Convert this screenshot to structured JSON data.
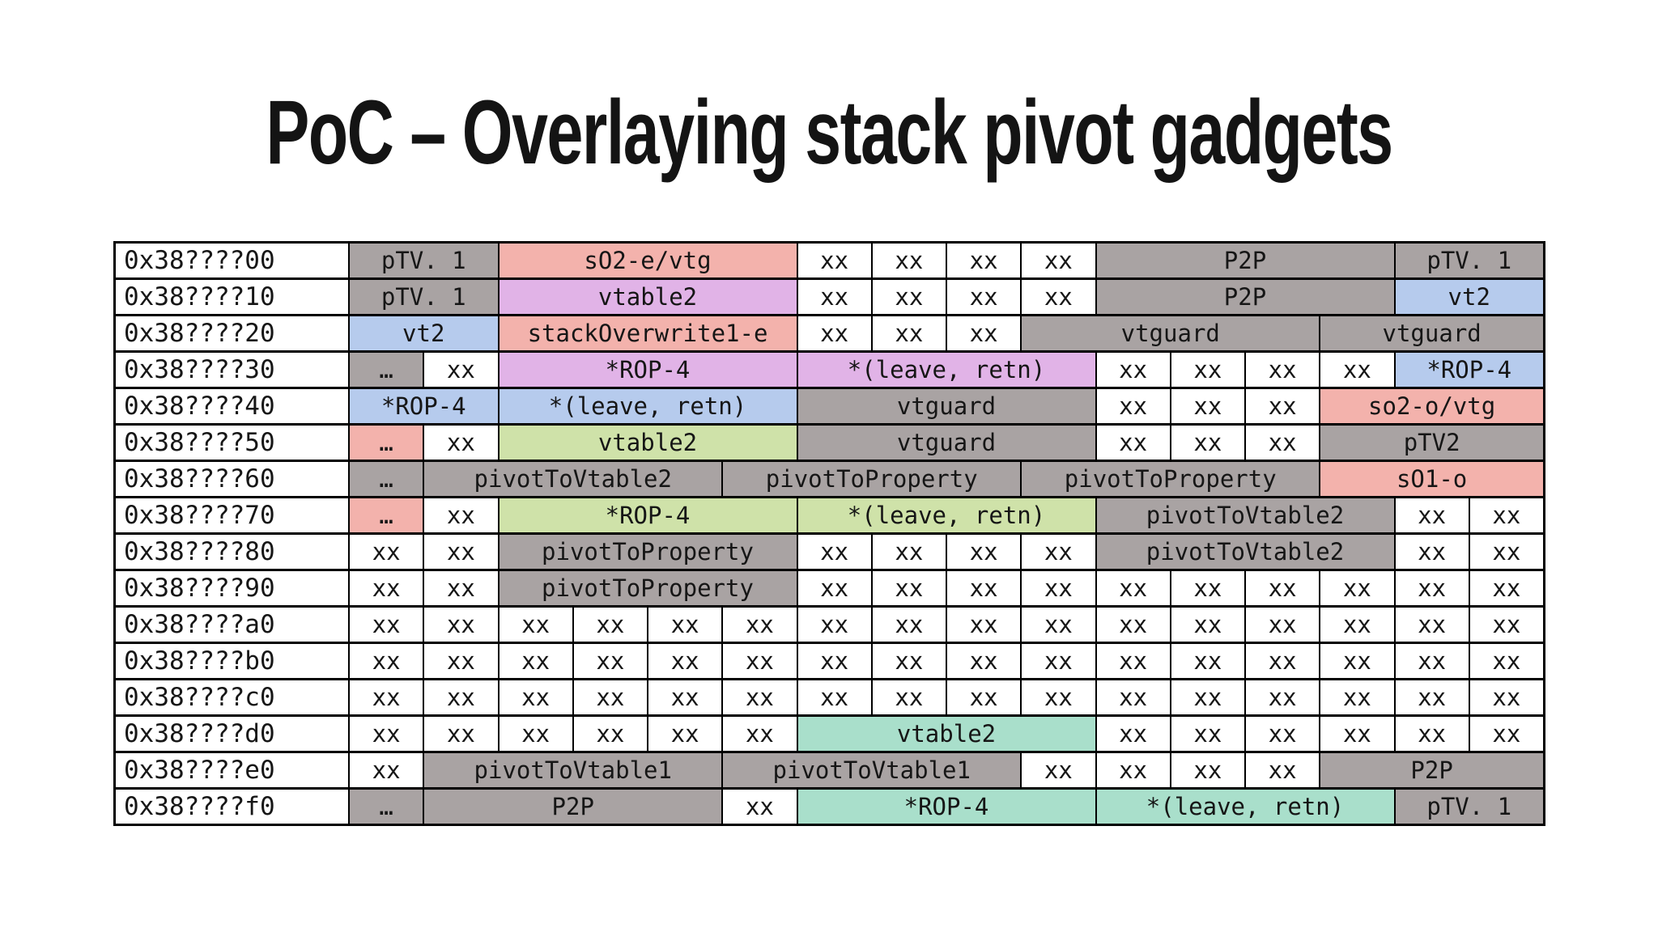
{
  "title": "PoC – Overlaying stack pivot gadgets",
  "palette": {
    "white": "#ffffff",
    "gray": "#a9a3a3",
    "salmon": "#f3b2ac",
    "purple": "#e1b3e7",
    "blue": "#b6cbed",
    "green": "#cfe2a9",
    "teal": "#a9dfcb"
  },
  "table": {
    "columns_per_row": 16,
    "rows": [
      {
        "addr": "0x38????00",
        "cells": [
          {
            "text": "pTV. 1",
            "span": 2,
            "color": "gray"
          },
          {
            "text": "sO2-e/vtg",
            "span": 4,
            "color": "salmon"
          },
          {
            "text": "xx",
            "span": 1,
            "color": "white"
          },
          {
            "text": "xx",
            "span": 1,
            "color": "white"
          },
          {
            "text": "xx",
            "span": 1,
            "color": "white"
          },
          {
            "text": "xx",
            "span": 1,
            "color": "white"
          },
          {
            "text": "P2P",
            "span": 4,
            "color": "gray"
          },
          {
            "text": "pTV. 1",
            "span": 2,
            "color": "gray"
          }
        ]
      },
      {
        "addr": "0x38????10",
        "cells": [
          {
            "text": "pTV. 1",
            "span": 2,
            "color": "gray"
          },
          {
            "text": "vtable2",
            "span": 4,
            "color": "purple"
          },
          {
            "text": "xx",
            "span": 1,
            "color": "white"
          },
          {
            "text": "xx",
            "span": 1,
            "color": "white"
          },
          {
            "text": "xx",
            "span": 1,
            "color": "white"
          },
          {
            "text": "xx",
            "span": 1,
            "color": "white"
          },
          {
            "text": "P2P",
            "span": 4,
            "color": "gray"
          },
          {
            "text": "vt2",
            "span": 2,
            "color": "blue"
          }
        ]
      },
      {
        "addr": "0x38????20",
        "cells": [
          {
            "text": "vt2",
            "span": 2,
            "color": "blue"
          },
          {
            "text": "stackOverwrite1-e",
            "span": 4,
            "color": "salmon"
          },
          {
            "text": "xx",
            "span": 1,
            "color": "white"
          },
          {
            "text": "xx",
            "span": 1,
            "color": "white"
          },
          {
            "text": "xx",
            "span": 1,
            "color": "white"
          },
          {
            "text": "vtguard",
            "span": 4,
            "color": "gray"
          },
          {
            "text": "vtguard",
            "span": 3,
            "color": "gray"
          }
        ]
      },
      {
        "addr": "0x38????30",
        "cells": [
          {
            "text": "…",
            "span": 1,
            "color": "gray"
          },
          {
            "text": "xx",
            "span": 1,
            "color": "white"
          },
          {
            "text": "*ROP-4",
            "span": 4,
            "color": "purple"
          },
          {
            "text": "*(leave, retn)",
            "span": 4,
            "color": "purple"
          },
          {
            "text": "xx",
            "span": 1,
            "color": "white"
          },
          {
            "text": "xx",
            "span": 1,
            "color": "white"
          },
          {
            "text": "xx",
            "span": 1,
            "color": "white"
          },
          {
            "text": "xx",
            "span": 1,
            "color": "white"
          },
          {
            "text": "*ROP-4",
            "span": 2,
            "color": "blue"
          }
        ]
      },
      {
        "addr": "0x38????40",
        "cells": [
          {
            "text": "*ROP-4",
            "span": 2,
            "color": "blue"
          },
          {
            "text": "*(leave, retn)",
            "span": 4,
            "color": "blue"
          },
          {
            "text": "vtguard",
            "span": 4,
            "color": "gray"
          },
          {
            "text": "xx",
            "span": 1,
            "color": "white"
          },
          {
            "text": "xx",
            "span": 1,
            "color": "white"
          },
          {
            "text": "xx",
            "span": 1,
            "color": "white"
          },
          {
            "text": "so2-o/vtg",
            "span": 3,
            "color": "salmon"
          }
        ]
      },
      {
        "addr": "0x38????50",
        "cells": [
          {
            "text": "…",
            "span": 1,
            "color": "salmon"
          },
          {
            "text": "xx",
            "span": 1,
            "color": "white"
          },
          {
            "text": "vtable2",
            "span": 4,
            "color": "green"
          },
          {
            "text": "vtguard",
            "span": 4,
            "color": "gray"
          },
          {
            "text": "xx",
            "span": 1,
            "color": "white"
          },
          {
            "text": "xx",
            "span": 1,
            "color": "white"
          },
          {
            "text": "xx",
            "span": 1,
            "color": "white"
          },
          {
            "text": "pTV2",
            "span": 3,
            "color": "gray"
          }
        ]
      },
      {
        "addr": "0x38????60",
        "cells": [
          {
            "text": "…",
            "span": 1,
            "color": "gray"
          },
          {
            "text": "pivotToVtable2",
            "span": 4,
            "color": "gray"
          },
          {
            "text": "pivotToProperty",
            "span": 4,
            "color": "gray"
          },
          {
            "text": "pivotToProperty",
            "span": 4,
            "color": "gray"
          },
          {
            "text": "sO1-o",
            "span": 3,
            "color": "salmon"
          }
        ]
      },
      {
        "addr": "0x38????70",
        "cells": [
          {
            "text": "…",
            "span": 1,
            "color": "salmon"
          },
          {
            "text": "xx",
            "span": 1,
            "color": "white"
          },
          {
            "text": "*ROP-4",
            "span": 4,
            "color": "green"
          },
          {
            "text": "*(leave, retn)",
            "span": 4,
            "color": "green"
          },
          {
            "text": "pivotToVtable2",
            "span": 4,
            "color": "gray"
          },
          {
            "text": "xx",
            "span": 1,
            "color": "white"
          },
          {
            "text": "xx",
            "span": 1,
            "color": "white"
          }
        ]
      },
      {
        "addr": "0x38????80",
        "cells": [
          {
            "text": "xx",
            "span": 1,
            "color": "white"
          },
          {
            "text": "xx",
            "span": 1,
            "color": "white"
          },
          {
            "text": "pivotToProperty",
            "span": 4,
            "color": "gray"
          },
          {
            "text": "xx",
            "span": 1,
            "color": "white"
          },
          {
            "text": "xx",
            "span": 1,
            "color": "white"
          },
          {
            "text": "xx",
            "span": 1,
            "color": "white"
          },
          {
            "text": "xx",
            "span": 1,
            "color": "white"
          },
          {
            "text": "pivotToVtable2",
            "span": 4,
            "color": "gray"
          },
          {
            "text": "xx",
            "span": 1,
            "color": "white"
          },
          {
            "text": "xx",
            "span": 1,
            "color": "white"
          }
        ]
      },
      {
        "addr": "0x38????90",
        "cells": [
          {
            "text": "xx",
            "span": 1,
            "color": "white"
          },
          {
            "text": "xx",
            "span": 1,
            "color": "white"
          },
          {
            "text": "pivotToProperty",
            "span": 4,
            "color": "gray"
          },
          {
            "text": "xx",
            "span": 1,
            "color": "white"
          },
          {
            "text": "xx",
            "span": 1,
            "color": "white"
          },
          {
            "text": "xx",
            "span": 1,
            "color": "white"
          },
          {
            "text": "xx",
            "span": 1,
            "color": "white"
          },
          {
            "text": "xx",
            "span": 1,
            "color": "white"
          },
          {
            "text": "xx",
            "span": 1,
            "color": "white"
          },
          {
            "text": "xx",
            "span": 1,
            "color": "white"
          },
          {
            "text": "xx",
            "span": 1,
            "color": "white"
          },
          {
            "text": "xx",
            "span": 1,
            "color": "white"
          },
          {
            "text": "xx",
            "span": 1,
            "color": "white"
          }
        ]
      },
      {
        "addr": "0x38????a0",
        "cells": [
          {
            "text": "xx",
            "span": 1,
            "color": "white"
          },
          {
            "text": "xx",
            "span": 1,
            "color": "white"
          },
          {
            "text": "xx",
            "span": 1,
            "color": "white"
          },
          {
            "text": "xx",
            "span": 1,
            "color": "white"
          },
          {
            "text": "xx",
            "span": 1,
            "color": "white"
          },
          {
            "text": "xx",
            "span": 1,
            "color": "white"
          },
          {
            "text": "xx",
            "span": 1,
            "color": "white"
          },
          {
            "text": "xx",
            "span": 1,
            "color": "white"
          },
          {
            "text": "xx",
            "span": 1,
            "color": "white"
          },
          {
            "text": "xx",
            "span": 1,
            "color": "white"
          },
          {
            "text": "xx",
            "span": 1,
            "color": "white"
          },
          {
            "text": "xx",
            "span": 1,
            "color": "white"
          },
          {
            "text": "xx",
            "span": 1,
            "color": "white"
          },
          {
            "text": "xx",
            "span": 1,
            "color": "white"
          },
          {
            "text": "xx",
            "span": 1,
            "color": "white"
          },
          {
            "text": "xx",
            "span": 1,
            "color": "white"
          }
        ]
      },
      {
        "addr": "0x38????b0",
        "cells": [
          {
            "text": "xx",
            "span": 1,
            "color": "white"
          },
          {
            "text": "xx",
            "span": 1,
            "color": "white"
          },
          {
            "text": "xx",
            "span": 1,
            "color": "white"
          },
          {
            "text": "xx",
            "span": 1,
            "color": "white"
          },
          {
            "text": "xx",
            "span": 1,
            "color": "white"
          },
          {
            "text": "xx",
            "span": 1,
            "color": "white"
          },
          {
            "text": "xx",
            "span": 1,
            "color": "white"
          },
          {
            "text": "xx",
            "span": 1,
            "color": "white"
          },
          {
            "text": "xx",
            "span": 1,
            "color": "white"
          },
          {
            "text": "xx",
            "span": 1,
            "color": "white"
          },
          {
            "text": "xx",
            "span": 1,
            "color": "white"
          },
          {
            "text": "xx",
            "span": 1,
            "color": "white"
          },
          {
            "text": "xx",
            "span": 1,
            "color": "white"
          },
          {
            "text": "xx",
            "span": 1,
            "color": "white"
          },
          {
            "text": "xx",
            "span": 1,
            "color": "white"
          },
          {
            "text": "xx",
            "span": 1,
            "color": "white"
          }
        ]
      },
      {
        "addr": "0x38????c0",
        "cells": [
          {
            "text": "xx",
            "span": 1,
            "color": "white"
          },
          {
            "text": "xx",
            "span": 1,
            "color": "white"
          },
          {
            "text": "xx",
            "span": 1,
            "color": "white"
          },
          {
            "text": "xx",
            "span": 1,
            "color": "white"
          },
          {
            "text": "xx",
            "span": 1,
            "color": "white"
          },
          {
            "text": "xx",
            "span": 1,
            "color": "white"
          },
          {
            "text": "xx",
            "span": 1,
            "color": "white"
          },
          {
            "text": "xx",
            "span": 1,
            "color": "white"
          },
          {
            "text": "xx",
            "span": 1,
            "color": "white"
          },
          {
            "text": "xx",
            "span": 1,
            "color": "white"
          },
          {
            "text": "xx",
            "span": 1,
            "color": "white"
          },
          {
            "text": "xx",
            "span": 1,
            "color": "white"
          },
          {
            "text": "xx",
            "span": 1,
            "color": "white"
          },
          {
            "text": "xx",
            "span": 1,
            "color": "white"
          },
          {
            "text": "xx",
            "span": 1,
            "color": "white"
          },
          {
            "text": "xx",
            "span": 1,
            "color": "white"
          }
        ]
      },
      {
        "addr": "0x38????d0",
        "cells": [
          {
            "text": "xx",
            "span": 1,
            "color": "white"
          },
          {
            "text": "xx",
            "span": 1,
            "color": "white"
          },
          {
            "text": "xx",
            "span": 1,
            "color": "white"
          },
          {
            "text": "xx",
            "span": 1,
            "color": "white"
          },
          {
            "text": "xx",
            "span": 1,
            "color": "white"
          },
          {
            "text": "xx",
            "span": 1,
            "color": "white"
          },
          {
            "text": "vtable2",
            "span": 4,
            "color": "teal"
          },
          {
            "text": "xx",
            "span": 1,
            "color": "white"
          },
          {
            "text": "xx",
            "span": 1,
            "color": "white"
          },
          {
            "text": "xx",
            "span": 1,
            "color": "white"
          },
          {
            "text": "xx",
            "span": 1,
            "color": "white"
          },
          {
            "text": "xx",
            "span": 1,
            "color": "white"
          },
          {
            "text": "xx",
            "span": 1,
            "color": "white"
          }
        ]
      },
      {
        "addr": "0x38????e0",
        "cells": [
          {
            "text": "xx",
            "span": 1,
            "color": "white"
          },
          {
            "text": "pivotToVtable1",
            "span": 4,
            "color": "gray"
          },
          {
            "text": "pivotToVtable1",
            "span": 4,
            "color": "gray"
          },
          {
            "text": "xx",
            "span": 1,
            "color": "white"
          },
          {
            "text": "xx",
            "span": 1,
            "color": "white"
          },
          {
            "text": "xx",
            "span": 1,
            "color": "white"
          },
          {
            "text": "xx",
            "span": 1,
            "color": "white"
          },
          {
            "text": "P2P",
            "span": 3,
            "color": "gray"
          }
        ]
      },
      {
        "addr": "0x38????f0",
        "cells": [
          {
            "text": "…",
            "span": 1,
            "color": "gray"
          },
          {
            "text": "P2P",
            "span": 4,
            "color": "gray"
          },
          {
            "text": "xx",
            "span": 1,
            "color": "white"
          },
          {
            "text": "*ROP-4",
            "span": 4,
            "color": "teal"
          },
          {
            "text": "*(leave, retn)",
            "span": 4,
            "color": "teal"
          },
          {
            "text": "pTV. 1",
            "span": 2,
            "color": "gray"
          }
        ]
      }
    ]
  }
}
